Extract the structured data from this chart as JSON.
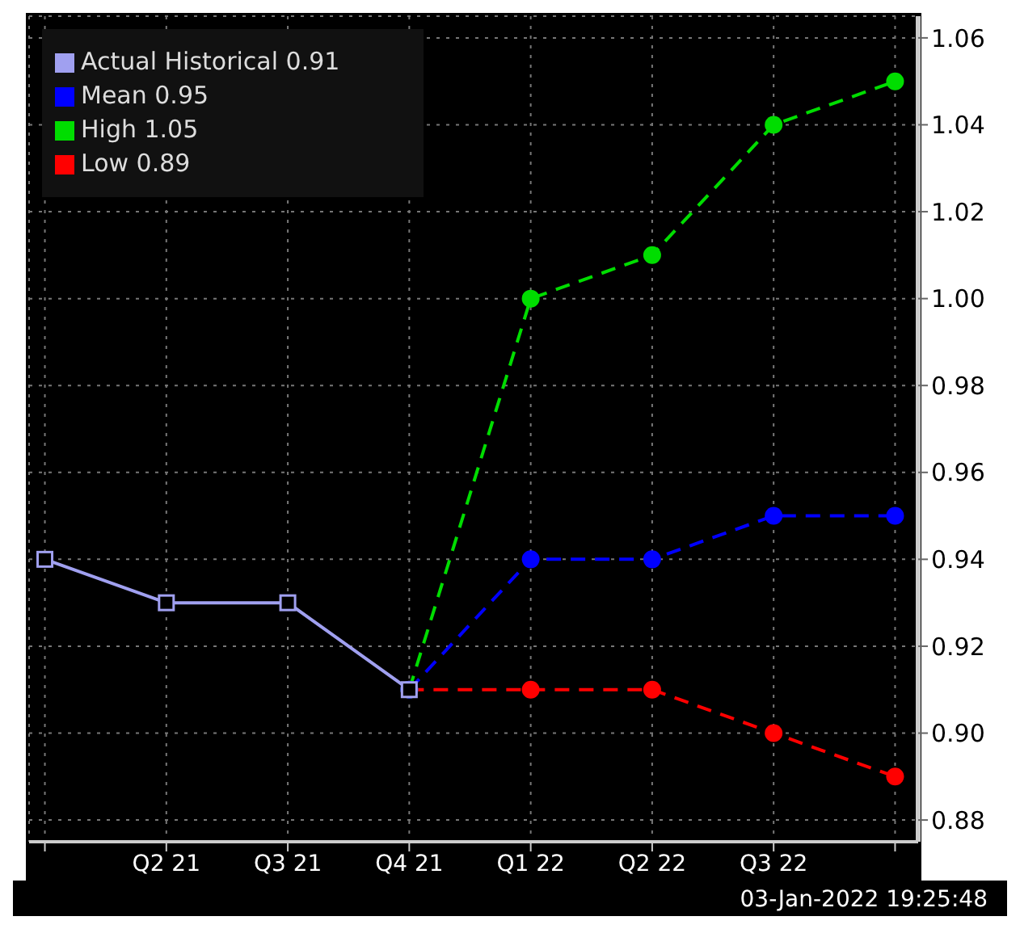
{
  "chart_data": {
    "type": "line",
    "categories": [
      null,
      "Q2 21",
      "Q3 21",
      "Q4 21",
      "Q1 22",
      "Q2 22",
      "Q3 22",
      null
    ],
    "series": [
      {
        "name": "Actual Historical 0.91",
        "color": "#a0a0f0",
        "marker": "square",
        "line_style": "solid",
        "values": [
          0.94,
          0.93,
          0.93,
          0.91,
          null,
          null,
          null,
          null
        ]
      },
      {
        "name": "Mean 0.95",
        "color": "#0000ff",
        "marker": "circle",
        "line_style": "dashed",
        "values": [
          null,
          null,
          null,
          0.91,
          0.94,
          0.94,
          0.95,
          0.95
        ]
      },
      {
        "name": "High 1.05",
        "color": "#00dd00",
        "marker": "circle",
        "line_style": "dashed",
        "values": [
          null,
          null,
          null,
          0.91,
          1.0,
          1.01,
          1.04,
          1.05
        ]
      },
      {
        "name": "Low 0.89",
        "color": "#ff0000",
        "marker": "circle",
        "line_style": "dashed",
        "values": [
          null,
          null,
          null,
          0.91,
          0.91,
          0.91,
          0.9,
          0.89
        ]
      }
    ],
    "ylim": [
      0.875,
      1.065
    ],
    "yticks": [
      0.88,
      {
        "value": 0.9,
        "label": "0.90"
      },
      0.92,
      0.94,
      0.96,
      0.98,
      {
        "value": 1.0,
        "label": "1.00"
      },
      1.02,
      1.04,
      1.06
    ],
    "grid": true,
    "legend": "top left",
    "annotations": [
      "03-Jan-2022 19:25:48"
    ]
  }
}
